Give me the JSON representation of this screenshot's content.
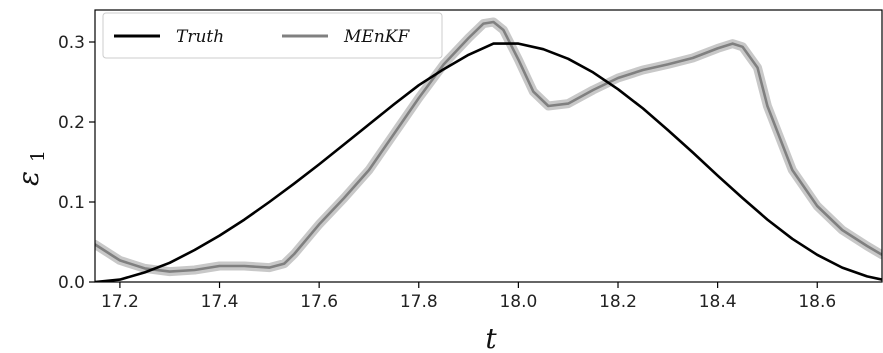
{
  "chart_data": {
    "type": "line",
    "xlabel": "t",
    "ylabel": "ε",
    "ylabel_subscript": "1",
    "xlim": [
      17.15,
      18.73
    ],
    "ylim": [
      0.0,
      0.34
    ],
    "xticks": [
      17.2,
      17.4,
      17.6,
      17.8,
      18.0,
      18.2,
      18.4,
      18.6
    ],
    "xtick_labels": [
      "17.2",
      "17.4",
      "17.6",
      "17.8",
      "18.0",
      "18.2",
      "18.4",
      "18.6"
    ],
    "yticks": [
      0.0,
      0.1,
      0.2,
      0.3
    ],
    "ytick_labels": [
      "0.0",
      "0.1",
      "0.2",
      "0.3"
    ],
    "grid": false,
    "legend": {
      "placement": "top-left",
      "ncol": 2
    },
    "series": [
      {
        "name": "Truth",
        "color": "#000000",
        "x": [
          17.15,
          17.2,
          17.25,
          17.3,
          17.35,
          17.4,
          17.45,
          17.5,
          17.55,
          17.6,
          17.65,
          17.7,
          17.75,
          17.8,
          17.85,
          17.9,
          17.95,
          18.0,
          18.05,
          18.1,
          18.15,
          18.2,
          18.25,
          18.3,
          18.35,
          18.4,
          18.45,
          18.5,
          18.55,
          18.6,
          18.65,
          18.7,
          18.73
        ],
        "values": [
          0.0,
          0.003,
          0.012,
          0.024,
          0.04,
          0.058,
          0.078,
          0.1,
          0.123,
          0.147,
          0.172,
          0.197,
          0.222,
          0.246,
          0.266,
          0.284,
          0.298,
          0.298,
          0.291,
          0.279,
          0.262,
          0.241,
          0.217,
          0.19,
          0.162,
          0.133,
          0.105,
          0.078,
          0.054,
          0.034,
          0.018,
          0.007,
          0.003
        ]
      },
      {
        "name": "MEnKF",
        "color": "#808080",
        "band_color": "#c8c8c8",
        "x": [
          17.15,
          17.18,
          17.2,
          17.25,
          17.3,
          17.35,
          17.4,
          17.45,
          17.5,
          17.53,
          17.55,
          17.6,
          17.65,
          17.7,
          17.75,
          17.8,
          17.85,
          17.9,
          17.93,
          17.95,
          17.97,
          18.0,
          18.03,
          18.06,
          18.1,
          18.15,
          18.2,
          18.25,
          18.3,
          18.35,
          18.4,
          18.43,
          18.45,
          18.48,
          18.5,
          18.55,
          18.6,
          18.65,
          18.7,
          18.73
        ],
        "values": [
          0.047,
          0.035,
          0.027,
          0.017,
          0.013,
          0.015,
          0.02,
          0.02,
          0.018,
          0.023,
          0.035,
          0.072,
          0.105,
          0.14,
          0.185,
          0.23,
          0.272,
          0.305,
          0.323,
          0.325,
          0.315,
          0.278,
          0.238,
          0.22,
          0.223,
          0.24,
          0.255,
          0.265,
          0.272,
          0.28,
          0.292,
          0.298,
          0.294,
          0.268,
          0.22,
          0.14,
          0.095,
          0.065,
          0.045,
          0.034
        ]
      }
    ]
  }
}
